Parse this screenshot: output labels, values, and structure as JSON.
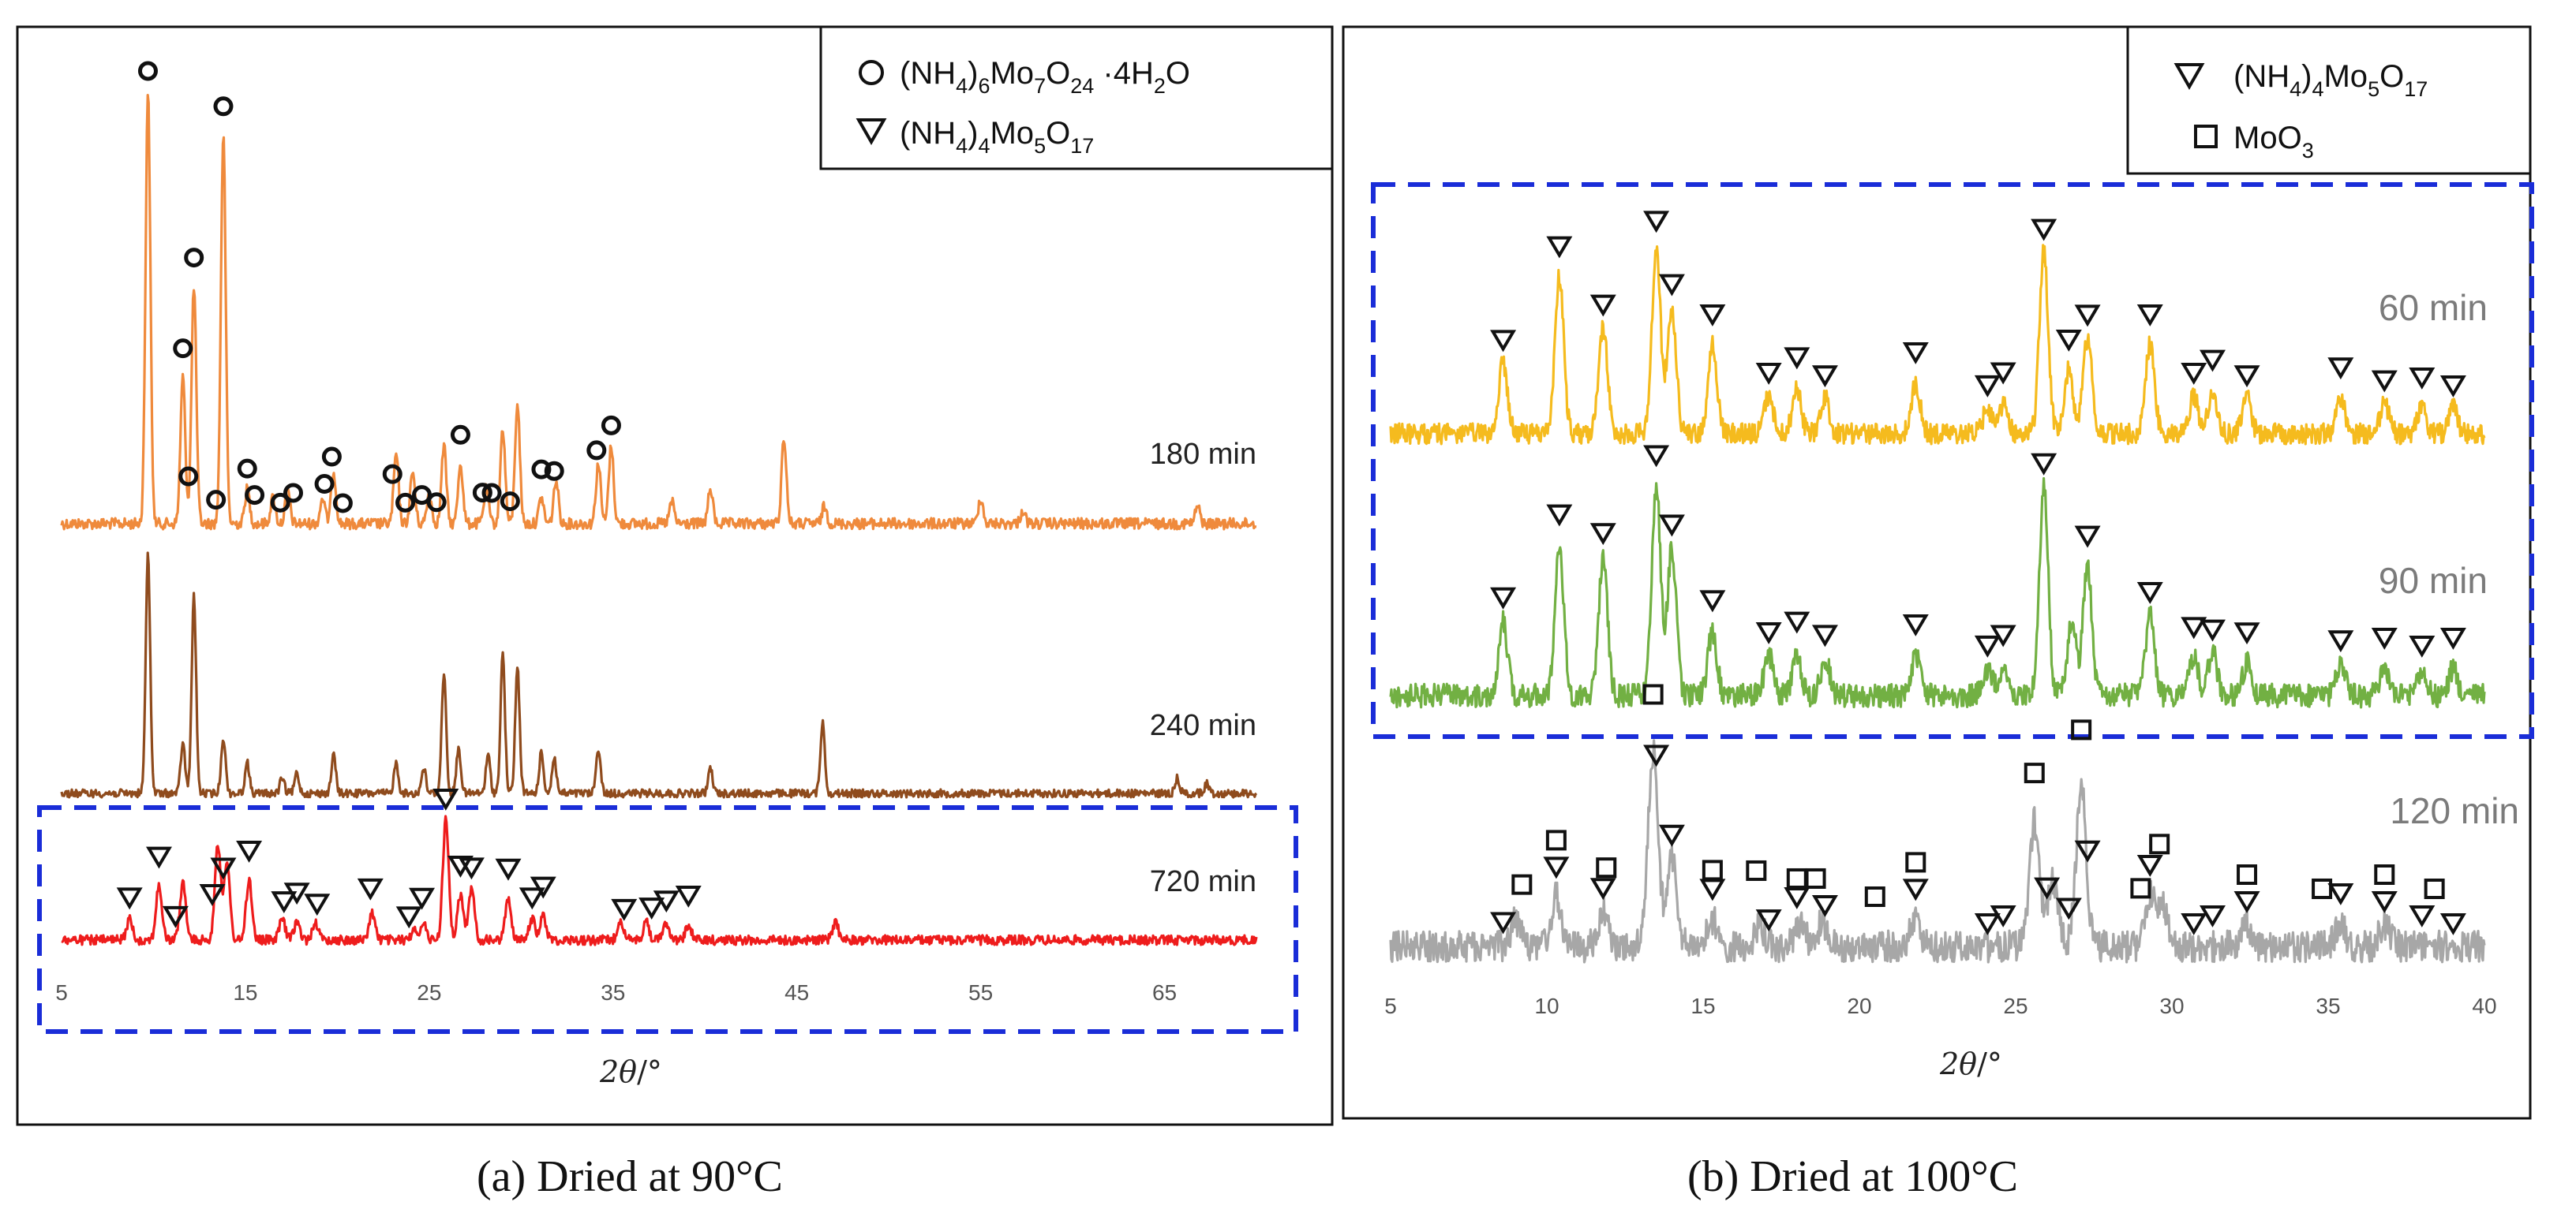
{
  "chart_data": [
    {
      "panel": "a",
      "type": "line",
      "caption": "(a)  Dried at 90°C",
      "xlabel_italic": "2θ",
      "xlabel_unit": "/°",
      "xlim": [
        5,
        70
      ],
      "xticks": [
        5,
        15,
        25,
        35,
        45,
        55,
        65
      ],
      "legend": [
        {
          "marker": "circle",
          "formula": "(NH4)6Mo7O24 ·4H2O"
        },
        {
          "marker": "triangle",
          "formula": "(NH4)4Mo5O17"
        }
      ],
      "highlight": "720 min",
      "series": [
        {
          "name": "180 min",
          "label": "180 min",
          "color": "#ef8a3c",
          "peaks": [
            [
              9.7,
              1.0
            ],
            [
              11.6,
              0.34
            ],
            [
              12.2,
              0.55
            ],
            [
              13.8,
              0.9
            ],
            [
              15.1,
              0.08
            ],
            [
              16.5,
              0.06
            ],
            [
              17.3,
              0.08
            ],
            [
              19.2,
              0.06
            ],
            [
              19.8,
              0.12
            ],
            [
              23.2,
              0.16
            ],
            [
              24.1,
              0.12
            ],
            [
              25.0,
              0.07
            ],
            [
              25.8,
              0.18
            ],
            [
              26.7,
              0.14
            ],
            [
              28.1,
              0.08
            ],
            [
              29.0,
              0.22
            ],
            [
              29.8,
              0.28
            ],
            [
              31.1,
              0.06
            ],
            [
              31.9,
              0.1
            ],
            [
              34.2,
              0.14
            ],
            [
              34.9,
              0.18
            ],
            [
              38.2,
              0.05
            ],
            [
              40.3,
              0.08
            ],
            [
              44.3,
              0.2
            ],
            [
              46.5,
              0.04
            ],
            [
              55.0,
              0.06
            ],
            [
              57.3,
              0.03
            ],
            [
              66.8,
              0.04
            ]
          ],
          "markers": {
            "circle": [
              9.7,
              11.6,
              11.9,
              12.2,
              13.4,
              13.8,
              15.1,
              15.5,
              16.9,
              17.6,
              19.3,
              19.7,
              20.3,
              23.0,
              23.7,
              24.6,
              25.4,
              26.7,
              27.9,
              28.4,
              29.4,
              31.1,
              31.8,
              34.1,
              34.9
            ]
          }
        },
        {
          "name": "240 min",
          "label": "240 min",
          "color": "#8f4b1d",
          "peaks": [
            [
              9.7,
              0.95
            ],
            [
              11.6,
              0.2
            ],
            [
              12.2,
              0.78
            ],
            [
              13.8,
              0.22
            ],
            [
              15.1,
              0.12
            ],
            [
              17.0,
              0.06
            ],
            [
              17.8,
              0.08
            ],
            [
              19.8,
              0.15
            ],
            [
              23.2,
              0.12
            ],
            [
              24.7,
              0.1
            ],
            [
              25.8,
              0.48
            ],
            [
              26.6,
              0.18
            ],
            [
              28.2,
              0.15
            ],
            [
              29.0,
              0.55
            ],
            [
              29.8,
              0.5
            ],
            [
              31.1,
              0.16
            ],
            [
              31.8,
              0.14
            ],
            [
              34.2,
              0.18
            ],
            [
              40.3,
              0.1
            ],
            [
              46.4,
              0.28
            ],
            [
              65.7,
              0.06
            ],
            [
              67.3,
              0.04
            ]
          ],
          "markers": {}
        },
        {
          "name": "720 min",
          "label": "720 min",
          "color": "#ee1c1c",
          "peaks": [
            [
              8.7,
              0.14
            ],
            [
              10.3,
              0.36
            ],
            [
              11.6,
              0.38
            ],
            [
              13.5,
              0.64
            ],
            [
              14.0,
              0.5
            ],
            [
              15.2,
              0.4
            ],
            [
              17.0,
              0.14
            ],
            [
              17.8,
              0.12
            ],
            [
              18.8,
              0.12
            ],
            [
              21.9,
              0.18
            ],
            [
              24.2,
              0.08
            ],
            [
              24.7,
              0.1
            ],
            [
              25.9,
              0.8
            ],
            [
              26.7,
              0.3
            ],
            [
              27.3,
              0.34
            ],
            [
              29.3,
              0.28
            ],
            [
              30.6,
              0.14
            ],
            [
              31.2,
              0.16
            ],
            [
              35.4,
              0.14
            ],
            [
              36.8,
              0.12
            ],
            [
              37.9,
              0.12
            ],
            [
              39.1,
              0.1
            ],
            [
              47.1,
              0.12
            ]
          ],
          "markers": {
            "triangle": [
              8.7,
              10.3,
              11.2,
              13.2,
              13.8,
              15.2,
              17.1,
              17.8,
              18.9,
              21.8,
              23.9,
              24.6,
              25.9,
              26.7,
              27.3,
              29.3,
              30.6,
              31.2,
              35.6,
              37.1,
              37.9,
              39.1
            ]
          }
        }
      ]
    },
    {
      "panel": "b",
      "type": "line",
      "caption": "(b)  Dried at 100°C",
      "xlabel_italic": "2θ",
      "xlabel_unit": "/°",
      "xlim": [
        5,
        40
      ],
      "xticks": [
        5,
        10,
        15,
        20,
        25,
        30,
        35,
        40
      ],
      "legend": [
        {
          "marker": "triangle",
          "formula": "(NH4)4Mo5O17"
        },
        {
          "marker": "square",
          "formula": "MoO3"
        }
      ],
      "highlight": "60 min and 90 min",
      "series": [
        {
          "name": "60 min",
          "label": "60 min",
          "color": "#f5bb1e",
          "peaks": [
            [
              8.6,
              0.28
            ],
            [
              10.4,
              0.62
            ],
            [
              11.8,
              0.42
            ],
            [
              13.5,
              0.72
            ],
            [
              14.0,
              0.5
            ],
            [
              15.3,
              0.35
            ],
            [
              17.1,
              0.15
            ],
            [
              18.0,
              0.18
            ],
            [
              18.9,
              0.14
            ],
            [
              21.8,
              0.2
            ],
            [
              24.1,
              0.1
            ],
            [
              24.6,
              0.12
            ],
            [
              25.9,
              0.72
            ],
            [
              26.7,
              0.25
            ],
            [
              27.3,
              0.38
            ],
            [
              29.3,
              0.35
            ],
            [
              30.7,
              0.15
            ],
            [
              31.3,
              0.17
            ],
            [
              32.4,
              0.14
            ],
            [
              35.4,
              0.14
            ],
            [
              36.8,
              0.12
            ],
            [
              38.0,
              0.1
            ],
            [
              39.0,
              0.1
            ]
          ],
          "markers": {
            "triangle": [
              8.6,
              10.4,
              11.8,
              13.5,
              14.0,
              15.3,
              17.1,
              18.0,
              18.9,
              21.8,
              24.1,
              24.6,
              25.9,
              26.7,
              27.3,
              29.3,
              30.7,
              31.3,
              32.4,
              35.4,
              36.8,
              38.0,
              39.0
            ]
          }
        },
        {
          "name": "90 min",
          "label": "90 min",
          "color": "#72b043",
          "peaks": [
            [
              8.6,
              0.28
            ],
            [
              10.4,
              0.56
            ],
            [
              11.8,
              0.52
            ],
            [
              13.5,
              0.78
            ],
            [
              14.0,
              0.55
            ],
            [
              15.3,
              0.24
            ],
            [
              17.1,
              0.15
            ],
            [
              18.0,
              0.16
            ],
            [
              18.9,
              0.14
            ],
            [
              21.8,
              0.15
            ],
            [
              24.1,
              0.1
            ],
            [
              24.6,
              0.11
            ],
            [
              25.9,
              0.78
            ],
            [
              26.8,
              0.28
            ],
            [
              27.3,
              0.48
            ],
            [
              29.3,
              0.3
            ],
            [
              30.7,
              0.14
            ],
            [
              31.3,
              0.16
            ],
            [
              32.4,
              0.12
            ],
            [
              35.4,
              0.12
            ],
            [
              36.8,
              0.1
            ],
            [
              38.0,
              0.1
            ],
            [
              39.0,
              0.1
            ]
          ],
          "markers": {
            "triangle": [
              8.6,
              10.4,
              11.8,
              13.5,
              14.0,
              15.3,
              17.1,
              18.0,
              18.9,
              21.8,
              24.1,
              24.6,
              25.9,
              27.3,
              29.3,
              30.7,
              31.3,
              32.4,
              35.4,
              36.8,
              38.0,
              39.0
            ]
          }
        },
        {
          "name": "120 min",
          "label": "120 min",
          "color": "#a7a7a7",
          "peaks": [
            [
              9.0,
              0.12
            ],
            [
              10.3,
              0.22
            ],
            [
              11.8,
              0.16
            ],
            [
              13.4,
              0.88
            ],
            [
              14.0,
              0.4
            ],
            [
              15.3,
              0.12
            ],
            [
              16.8,
              0.1
            ],
            [
              18.1,
              0.1
            ],
            [
              18.8,
              0.1
            ],
            [
              21.8,
              0.12
            ],
            [
              25.6,
              0.56
            ],
            [
              26.2,
              0.3
            ],
            [
              27.1,
              0.72
            ],
            [
              29.3,
              0.22
            ],
            [
              29.7,
              0.2
            ],
            [
              32.4,
              0.1
            ],
            [
              35.4,
              0.1
            ],
            [
              36.8,
              0.1
            ]
          ],
          "markers": {
            "triangle": [
              8.6,
              10.3,
              11.8,
              13.5,
              14.0,
              15.3,
              17.1,
              18.0,
              18.9,
              21.8,
              24.1,
              24.6,
              26.0,
              26.7,
              27.3,
              29.3,
              30.7,
              31.3,
              32.4,
              35.4,
              36.8,
              38.0,
              39.0
            ],
            "square": [
              9.2,
              10.3,
              11.9,
              13.4,
              15.3,
              16.7,
              18.0,
              18.6,
              20.5,
              21.8,
              25.6,
              27.1,
              29.0,
              29.6,
              32.4,
              34.8,
              36.8,
              38.4
            ]
          }
        }
      ]
    }
  ]
}
